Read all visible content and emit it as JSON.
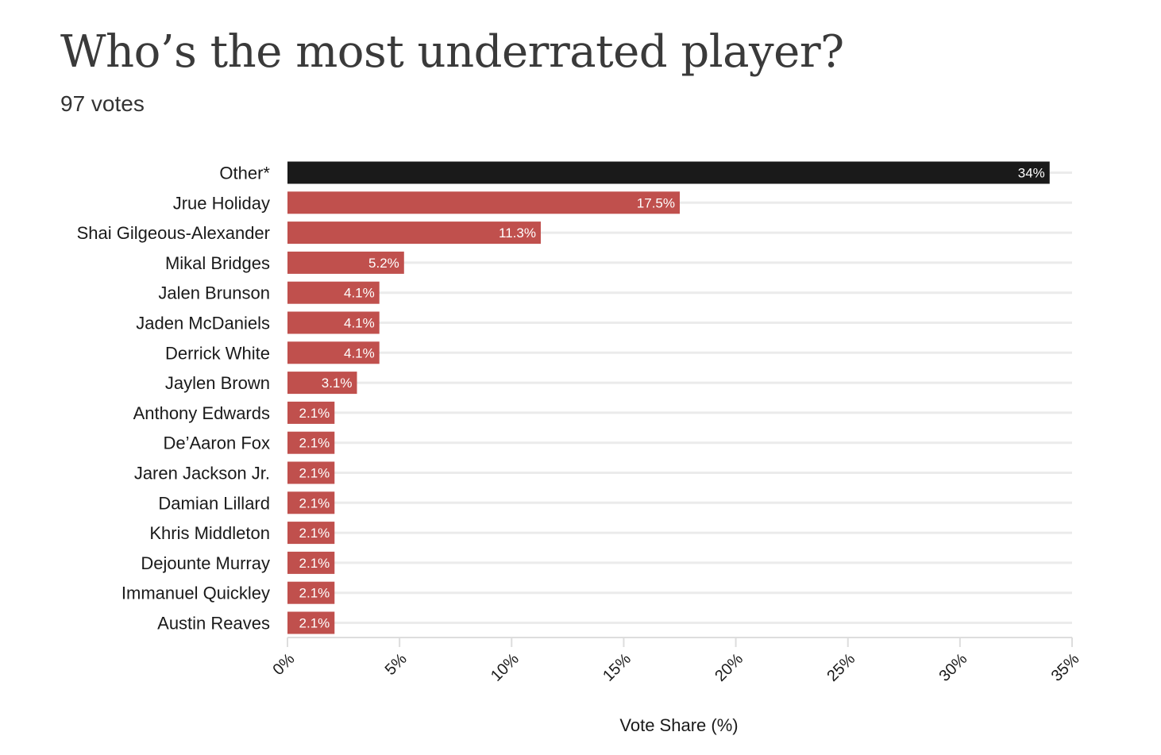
{
  "header": {
    "title": "Who’s the most underrated player?",
    "subtitle": "97 votes"
  },
  "colors": {
    "highlight": "#1a1a1a",
    "bar": "#c0504d",
    "grid": "#ebebeb",
    "axis": "#dddddd",
    "value_label": "#ffffff",
    "text": "#1a1a1a"
  },
  "chart_data": {
    "type": "bar",
    "orientation": "horizontal",
    "xlabel": "Vote Share (%)",
    "ylabel": "",
    "xlim": [
      0,
      35
    ],
    "grid": true,
    "ticks": [
      0,
      5,
      10,
      15,
      20,
      25,
      30,
      35
    ],
    "tick_labels": [
      "0%",
      "5%",
      "10%",
      "15%",
      "20%",
      "25%",
      "30%",
      "35%"
    ],
    "categories": [
      "Other*",
      "Jrue Holiday",
      "Shai Gilgeous-Alexander",
      "Mikal Bridges",
      "Jalen Brunson",
      "Jaden McDaniels",
      "Derrick White",
      "Jaylen Brown",
      "Anthony Edwards",
      "De’Aaron Fox",
      "Jaren Jackson Jr.",
      "Damian Lillard",
      "Khris Middleton",
      "Dejounte Murray",
      "Immanuel Quickley",
      "Austin Reaves"
    ],
    "values": [
      34,
      17.5,
      11.3,
      5.2,
      4.1,
      4.1,
      4.1,
      3.1,
      2.1,
      2.1,
      2.1,
      2.1,
      2.1,
      2.1,
      2.1,
      2.1
    ],
    "value_labels": [
      "34%",
      "17.5%",
      "11.3%",
      "5.2%",
      "4.1%",
      "4.1%",
      "4.1%",
      "3.1%",
      "2.1%",
      "2.1%",
      "2.1%",
      "2.1%",
      "2.1%",
      "2.1%",
      "2.1%",
      "2.1%"
    ],
    "highlight_category": "Other*"
  }
}
